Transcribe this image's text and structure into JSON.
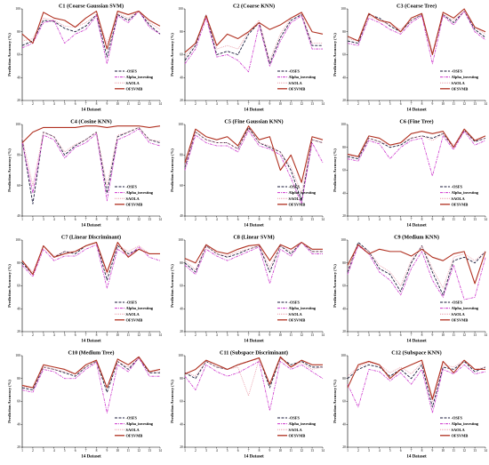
{
  "common": {
    "xlabel": "14 Dataset",
    "ylabel": "Prediction Accuracy (%)",
    "x": [
      1,
      2,
      3,
      4,
      5,
      6,
      7,
      8,
      9,
      10,
      11,
      12,
      13,
      14
    ],
    "legend": [
      "OSFS",
      "Alpha_investing",
      "SAOLA",
      "OFSVMB"
    ],
    "legend_prefix": [
      "-",
      "",
      "",
      ""
    ],
    "colors": [
      "#1a1a3a",
      "#cc33cc",
      "#e89aa8",
      "#b03020"
    ]
  },
  "chart_data": [
    {
      "type": "line",
      "title": "C1 (Coarse Gaussian SVM)",
      "ylim": [
        20,
        100
      ],
      "yticks": [
        20,
        40,
        60,
        80,
        100
      ],
      "series": [
        {
          "name": "OSFS",
          "values": [
            68,
            72,
            90,
            89,
            83,
            80,
            85,
            95,
            58,
            95,
            90,
            98,
            86,
            78
          ]
        },
        {
          "name": "Alpha_investing",
          "values": [
            66,
            70,
            88,
            90,
            70,
            78,
            82,
            94,
            52,
            94,
            88,
            98,
            84,
            78
          ]
        },
        {
          "name": "SAOLA",
          "values": [
            72,
            74,
            92,
            90,
            85,
            84,
            88,
            95,
            70,
            96,
            92,
            98,
            88,
            82
          ]
        },
        {
          "name": "OFSVMB",
          "values": [
            78,
            70,
            97,
            92,
            90,
            84,
            92,
            98,
            65,
            98,
            95,
            98,
            90,
            85
          ]
        }
      ]
    },
    {
      "type": "line",
      "title": "C2 (Coarse KNN)",
      "ylim": [
        20,
        100
      ],
      "yticks": [
        20,
        40,
        60,
        80,
        100
      ],
      "series": [
        {
          "name": "OSFS",
          "values": [
            55,
            68,
            95,
            60,
            63,
            60,
            78,
            88,
            52,
            75,
            90,
            95,
            68,
            68
          ]
        },
        {
          "name": "Alpha_investing",
          "values": [
            52,
            65,
            92,
            58,
            60,
            55,
            45,
            86,
            50,
            72,
            88,
            94,
            65,
            65
          ]
        },
        {
          "name": "SAOLA",
          "values": [
            58,
            70,
            95,
            65,
            68,
            65,
            80,
            90,
            55,
            78,
            92,
            96,
            70,
            70
          ]
        },
        {
          "name": "OFSVMB",
          "values": [
            62,
            70,
            94,
            68,
            78,
            74,
            80,
            88,
            82,
            86,
            92,
            97,
            80,
            78
          ]
        }
      ]
    },
    {
      "type": "line",
      "title": "C3 (Coarse Tree)",
      "ylim": [
        20,
        100
      ],
      "yticks": [
        20,
        40,
        60,
        80,
        100
      ],
      "series": [
        {
          "name": "OSFS",
          "values": [
            72,
            70,
            95,
            92,
            85,
            80,
            90,
            95,
            60,
            95,
            88,
            98,
            82,
            75
          ]
        },
        {
          "name": "Alpha_investing",
          "values": [
            70,
            68,
            92,
            88,
            82,
            78,
            88,
            94,
            52,
            94,
            86,
            98,
            80,
            73
          ]
        },
        {
          "name": "SAOLA",
          "values": [
            74,
            72,
            94,
            90,
            86,
            82,
            90,
            95,
            62,
            95,
            90,
            98,
            84,
            78
          ]
        },
        {
          "name": "OFSVMB",
          "values": [
            76,
            72,
            96,
            90,
            88,
            80,
            92,
            96,
            60,
            97,
            92,
            100,
            84,
            80
          ]
        }
      ]
    },
    {
      "type": "line",
      "title": "C4 (Cosine KNN)",
      "ylim": [
        40,
        100
      ],
      "yticks": [
        40,
        60,
        80,
        100
      ],
      "series": [
        {
          "name": "OSFS",
          "values": [
            90,
            48,
            95,
            92,
            80,
            86,
            90,
            95,
            55,
            92,
            95,
            98,
            90,
            88
          ]
        },
        {
          "name": "Alpha_investing",
          "values": [
            88,
            55,
            93,
            90,
            78,
            85,
            88,
            94,
            50,
            90,
            93,
            97,
            88,
            86
          ]
        },
        {
          "name": "SAOLA",
          "values": [
            91,
            60,
            95,
            92,
            82,
            87,
            90,
            95,
            60,
            93,
            95,
            98,
            90,
            89
          ]
        },
        {
          "name": "OFSVMB",
          "values": [
            88,
            95,
            98,
            98,
            98,
            98,
            99,
            99,
            98,
            99,
            99,
            99,
            98,
            99
          ]
        }
      ]
    },
    {
      "type": "line",
      "title": "C5 (Fine Gaussian KNN)",
      "ylim": [
        40,
        100
      ],
      "yticks": [
        40,
        60,
        80,
        100
      ],
      "series": [
        {
          "name": "OSFS",
          "values": [
            72,
            95,
            90,
            88,
            88,
            84,
            98,
            88,
            85,
            82,
            70,
            50,
            90,
            88
          ]
        },
        {
          "name": "Alpha_investing",
          "values": [
            70,
            93,
            88,
            86,
            86,
            82,
            96,
            86,
            84,
            80,
            65,
            48,
            88,
            75
          ]
        },
        {
          "name": "SAOLA",
          "values": [
            73,
            95,
            90,
            88,
            88,
            84,
            97,
            88,
            86,
            82,
            72,
            55,
            90,
            88
          ]
        },
        {
          "name": "OFSVMB",
          "values": [
            75,
            97,
            92,
            90,
            92,
            86,
            99,
            90,
            92,
            70,
            80,
            62,
            92,
            90
          ]
        }
      ]
    },
    {
      "type": "line",
      "title": "C6 (Fine Tree)",
      "ylim": [
        20,
        100
      ],
      "yticks": [
        20,
        40,
        60,
        80,
        100
      ],
      "series": [
        {
          "name": "OSFS",
          "values": [
            72,
            70,
            88,
            85,
            80,
            82,
            88,
            90,
            88,
            92,
            80,
            95,
            85,
            88
          ]
        },
        {
          "name": "Alpha_investing",
          "values": [
            70,
            68,
            86,
            83,
            70,
            80,
            86,
            88,
            55,
            90,
            78,
            94,
            82,
            86
          ]
        },
        {
          "name": "SAOLA",
          "values": [
            73,
            72,
            88,
            85,
            82,
            84,
            88,
            90,
            86,
            92,
            82,
            95,
            86,
            88
          ]
        },
        {
          "name": "OFSVMB",
          "values": [
            74,
            72,
            90,
            88,
            82,
            84,
            92,
            94,
            92,
            94,
            80,
            96,
            86,
            90
          ]
        }
      ]
    },
    {
      "type": "line",
      "title": "C7 (Linear Discriminant)",
      "ylim": [
        20,
        100
      ],
      "yticks": [
        20,
        40,
        60,
        80,
        100
      ],
      "series": [
        {
          "name": "OSFS",
          "values": [
            80,
            70,
            95,
            85,
            90,
            88,
            95,
            98,
            65,
            95,
            88,
            92,
            88,
            88
          ]
        },
        {
          "name": "Alpha_investing",
          "values": [
            78,
            68,
            92,
            82,
            86,
            86,
            92,
            96,
            58,
            92,
            86,
            94,
            85,
            82
          ]
        },
        {
          "name": "SAOLA",
          "values": [
            82,
            72,
            95,
            86,
            90,
            90,
            95,
            98,
            70,
            96,
            90,
            95,
            88,
            88
          ]
        },
        {
          "name": "OFSVMB",
          "values": [
            82,
            70,
            95,
            85,
            88,
            90,
            95,
            98,
            72,
            98,
            85,
            92,
            88,
            88
          ]
        }
      ]
    },
    {
      "type": "line",
      "title": "C8 (Linear SVM)",
      "ylim": [
        20,
        100
      ],
      "yticks": [
        20,
        40,
        60,
        80,
        100
      ],
      "series": [
        {
          "name": "OSFS",
          "values": [
            80,
            72,
            95,
            88,
            85,
            88,
            92,
            95,
            72,
            95,
            88,
            98,
            90,
            90
          ]
        },
        {
          "name": "Alpha_investing",
          "values": [
            78,
            70,
            92,
            86,
            82,
            86,
            90,
            94,
            62,
            92,
            86,
            98,
            88,
            88
          ]
        },
        {
          "name": "SAOLA",
          "values": [
            82,
            74,
            95,
            88,
            86,
            90,
            92,
            95,
            76,
            95,
            90,
            98,
            90,
            90
          ]
        },
        {
          "name": "OFSVMB",
          "values": [
            84,
            80,
            96,
            90,
            88,
            92,
            95,
            96,
            82,
            96,
            92,
            98,
            92,
            92
          ]
        }
      ]
    },
    {
      "type": "line",
      "title": "C9 (Medium KNN)",
      "ylim": [
        20,
        100
      ],
      "yticks": [
        20,
        40,
        60,
        80,
        100
      ],
      "series": [
        {
          "name": "OSFS",
          "values": [
            72,
            98,
            90,
            75,
            70,
            55,
            80,
            95,
            72,
            52,
            82,
            85,
            80,
            90
          ]
        },
        {
          "name": "Alpha_investing",
          "values": [
            70,
            95,
            88,
            72,
            65,
            52,
            75,
            90,
            65,
            50,
            78,
            48,
            50,
            85
          ]
        },
        {
          "name": "SAOLA",
          "values": [
            74,
            96,
            90,
            78,
            72,
            60,
            82,
            95,
            75,
            58,
            85,
            88,
            82,
            90
          ]
        },
        {
          "name": "OFSVMB",
          "values": [
            78,
            96,
            88,
            92,
            90,
            90,
            86,
            92,
            85,
            82,
            88,
            90,
            62,
            90
          ]
        }
      ]
    },
    {
      "type": "line",
      "title": "C10 (Medium Tree)",
      "ylim": [
        20,
        100
      ],
      "yticks": [
        20,
        40,
        60,
        80,
        100
      ],
      "series": [
        {
          "name": "OSFS",
          "values": [
            72,
            70,
            90,
            88,
            85,
            82,
            90,
            95,
            68,
            95,
            88,
            98,
            85,
            85
          ]
        },
        {
          "name": "Alpha_investing",
          "values": [
            70,
            68,
            88,
            86,
            80,
            80,
            88,
            94,
            50,
            92,
            86,
            98,
            82,
            82
          ]
        },
        {
          "name": "SAOLA",
          "values": [
            73,
            72,
            90,
            88,
            86,
            84,
            90,
            95,
            72,
            95,
            90,
            98,
            86,
            86
          ]
        },
        {
          "name": "OFSVMB",
          "values": [
            74,
            72,
            92,
            90,
            88,
            84,
            92,
            96,
            72,
            97,
            92,
            99,
            86,
            88
          ]
        }
      ]
    },
    {
      "type": "line",
      "title": "C11 (Subspace Discriminant)",
      "ylim": [
        20,
        100
      ],
      "yticks": [
        20,
        40,
        60,
        80,
        100
      ],
      "series": [
        {
          "name": "OSFS",
          "values": [
            85,
            80,
            95,
            90,
            88,
            92,
            95,
            98,
            72,
            98,
            92,
            95,
            90,
            90
          ]
        },
        {
          "name": "Alpha_investing",
          "values": [
            82,
            70,
            92,
            86,
            82,
            85,
            90,
            95,
            52,
            95,
            88,
            92,
            86,
            80
          ]
        },
        {
          "name": "SAOLA",
          "values": [
            86,
            82,
            95,
            90,
            88,
            90,
            65,
            97,
            75,
            98,
            90,
            94,
            88,
            90
          ]
        },
        {
          "name": "OFSVMB",
          "values": [
            84,
            88,
            96,
            92,
            88,
            92,
            95,
            98,
            75,
            99,
            90,
            96,
            92,
            92
          ]
        }
      ]
    },
    {
      "type": "line",
      "title": "C12 (Subspace KNN)",
      "ylim": [
        20,
        100
      ],
      "yticks": [
        20,
        40,
        60,
        80,
        100
      ],
      "series": [
        {
          "name": "OSFS",
          "values": [
            80,
            88,
            92,
            90,
            82,
            88,
            80,
            92,
            55,
            90,
            88,
            95,
            86,
            90
          ]
        },
        {
          "name": "Alpha_investing",
          "values": [
            75,
            55,
            88,
            86,
            78,
            85,
            75,
            88,
            50,
            88,
            84,
            92,
            84,
            86
          ]
        },
        {
          "name": "SAOLA",
          "values": [
            82,
            90,
            94,
            92,
            85,
            90,
            84,
            94,
            60,
            92,
            90,
            96,
            88,
            90
          ]
        },
        {
          "name": "OFSVMB",
          "values": [
            72,
            92,
            95,
            92,
            80,
            88,
            92,
            96,
            62,
            95,
            85,
            96,
            88,
            88
          ]
        }
      ]
    }
  ]
}
